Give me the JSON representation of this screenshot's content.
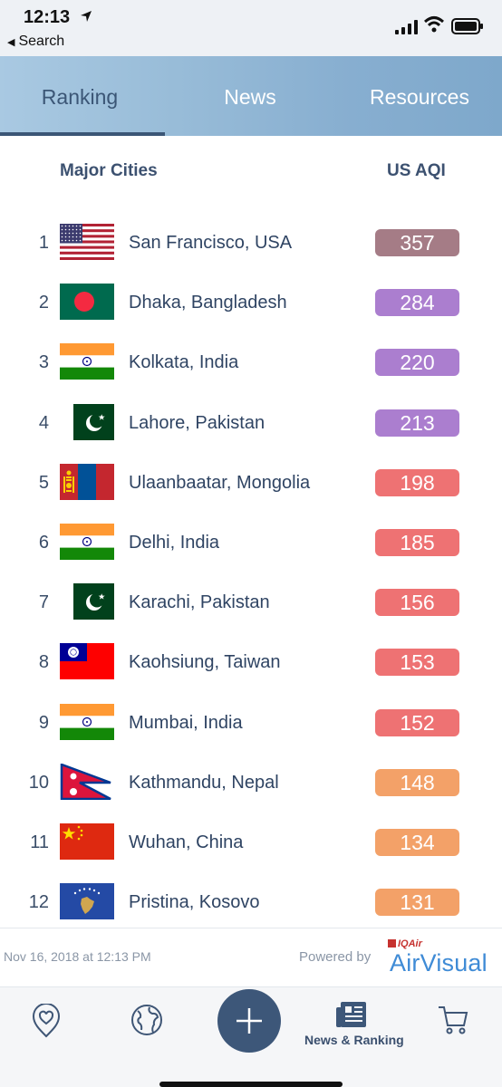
{
  "status_bar": {
    "time": "12:13",
    "back_label": "Search"
  },
  "tabs": [
    {
      "label": "Ranking",
      "active": true
    },
    {
      "label": "News",
      "active": false
    },
    {
      "label": "Resources",
      "active": false
    }
  ],
  "table": {
    "col_city": "Major Cities",
    "col_aqi": "US AQI",
    "rows": [
      {
        "rank": "1",
        "city": "San Francisco, USA",
        "aqi": "357",
        "color": "#a57c86",
        "flag": "us"
      },
      {
        "rank": "2",
        "city": "Dhaka, Bangladesh",
        "aqi": "284",
        "color": "#ab7ecf",
        "flag": "bd"
      },
      {
        "rank": "3",
        "city": "Kolkata, India",
        "aqi": "220",
        "color": "#ab7ecf",
        "flag": "in"
      },
      {
        "rank": "4",
        "city": "Lahore, Pakistan",
        "aqi": "213",
        "color": "#ab7ecf",
        "flag": "pk"
      },
      {
        "rank": "5",
        "city": "Ulaanbaatar, Mongolia",
        "aqi": "198",
        "color": "#ee7273",
        "flag": "mn"
      },
      {
        "rank": "6",
        "city": "Delhi, India",
        "aqi": "185",
        "color": "#ee7273",
        "flag": "in"
      },
      {
        "rank": "7",
        "city": "Karachi, Pakistan",
        "aqi": "156",
        "color": "#ee7273",
        "flag": "pk"
      },
      {
        "rank": "8",
        "city": "Kaohsiung, Taiwan",
        "aqi": "153",
        "color": "#ee7273",
        "flag": "tw"
      },
      {
        "rank": "9",
        "city": "Mumbai, India",
        "aqi": "152",
        "color": "#ee7273",
        "flag": "in"
      },
      {
        "rank": "10",
        "city": "Kathmandu, Nepal",
        "aqi": "148",
        "color": "#f3a168",
        "flag": "np"
      },
      {
        "rank": "11",
        "city": "Wuhan, China",
        "aqi": "134",
        "color": "#f3a168",
        "flag": "cn"
      },
      {
        "rank": "12",
        "city": "Pristina, Kosovo",
        "aqi": "131",
        "color": "#f3a168",
        "flag": "xk"
      }
    ]
  },
  "footer": {
    "timestamp": "Nov 16, 2018 at 12:13 PM",
    "powered_by": "Powered by",
    "brand_small": "IQAir",
    "brand": "AirVisual"
  },
  "bottom_nav": {
    "items": [
      {
        "name": "favorites",
        "icon": "heart-pin-icon"
      },
      {
        "name": "map",
        "icon": "globe-icon"
      },
      {
        "name": "add",
        "icon": "plus-icon"
      },
      {
        "name": "news-ranking",
        "icon": "newspaper-icon",
        "label": "News & Ranking"
      },
      {
        "name": "shop",
        "icon": "cart-icon"
      }
    ]
  },
  "colors": {
    "tab_active": "#3b5676",
    "aqi_very_unhealthy": "#ab7ecf",
    "aqi_hazardous": "#a57c86",
    "aqi_unhealthy": "#ee7273",
    "aqi_sensitive": "#f3a168",
    "brand_blue": "#3f8bd6"
  }
}
